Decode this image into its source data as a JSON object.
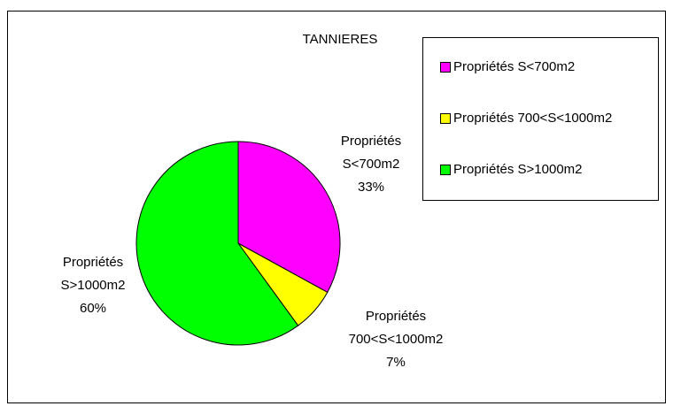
{
  "chart_data": {
    "type": "pie",
    "title": "TANNIERES",
    "categories": [
      "Propriétés S<700m2",
      "Propriétés 700<S<1000m2",
      "Propriétés S>1000m2"
    ],
    "values": [
      33,
      7,
      60
    ],
    "value_labels": [
      "33%",
      "7%",
      "60%"
    ],
    "colors": [
      "#ff00ff",
      "#ffff00",
      "#00ff00"
    ],
    "legend": "top-right"
  }
}
